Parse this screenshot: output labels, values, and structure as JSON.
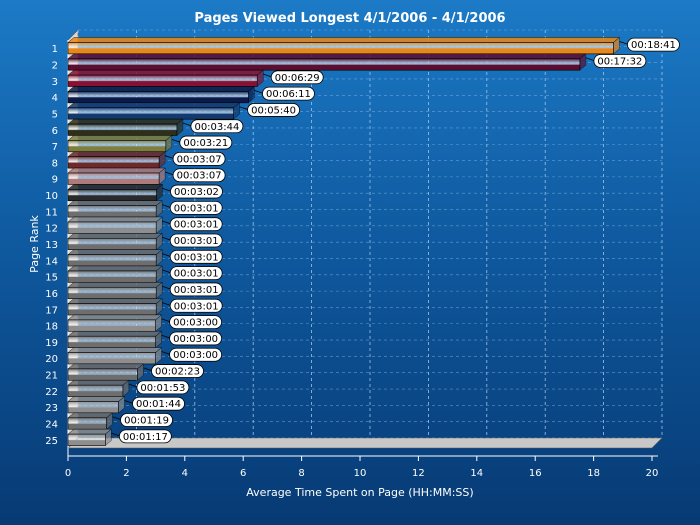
{
  "chart_data": {
    "type": "bar",
    "orientation": "horizontal",
    "title": "Pages Viewed Longest 4/1/2006  - 4/1/2006",
    "xlabel": "Average Time Spent on Page (HH:MM:SS)",
    "ylabel": "Page Rank",
    "xlim": [
      0,
      20
    ],
    "x_ticks": [
      "0",
      "2",
      "4",
      "6",
      "8",
      "10",
      "12",
      "14",
      "16",
      "18",
      "20"
    ],
    "grid": true,
    "categories": [
      "1",
      "2",
      "3",
      "4",
      "5",
      "6",
      "7",
      "8",
      "9",
      "10",
      "11",
      "12",
      "13",
      "14",
      "15",
      "16",
      "17",
      "18",
      "19",
      "20",
      "21",
      "22",
      "23",
      "24",
      "25"
    ],
    "values": [
      18.68,
      17.53,
      6.48,
      6.18,
      5.67,
      3.73,
      3.35,
      3.12,
      3.12,
      3.03,
      3.02,
      3.02,
      3.02,
      3.02,
      3.02,
      3.02,
      3.02,
      3.0,
      3.0,
      3.0,
      2.38,
      1.88,
      1.73,
      1.32,
      1.28
    ],
    "labels": [
      "00:18:41",
      "00:17:32",
      "00:06:29",
      "00:06:11",
      "00:05:40",
      "00:03:44",
      "00:03:21",
      "00:03:07",
      "00:03:07",
      "00:03:02",
      "00:03:01",
      "00:03:01",
      "00:03:01",
      "00:03:01",
      "00:03:01",
      "00:03:01",
      "00:03:01",
      "00:03:00",
      "00:03:00",
      "00:03:00",
      "00:02:23",
      "00:01:53",
      "00:01:44",
      "00:01:19",
      "00:01:17"
    ],
    "colors": [
      "#e8881a",
      "#5a0e30",
      "#8a1030",
      "#0c1a4a",
      "#123a6e",
      "#2e2e1a",
      "#7e7e3e",
      "#6e2a2a",
      "#b07a7a",
      "#2a2a2a",
      "#6e6e6e",
      "#8e8e8e",
      "#6e6e6e",
      "#6e6e6e",
      "#6e6e6e",
      "#6e6e6e",
      "#6e6e6e",
      "#8e8e8e",
      "#6e6e6e",
      "#8e8e8e",
      "#6e6e6e",
      "#6e6e6e",
      "#8e8e8e",
      "#6e6e6e",
      "#8e8e8e"
    ]
  }
}
